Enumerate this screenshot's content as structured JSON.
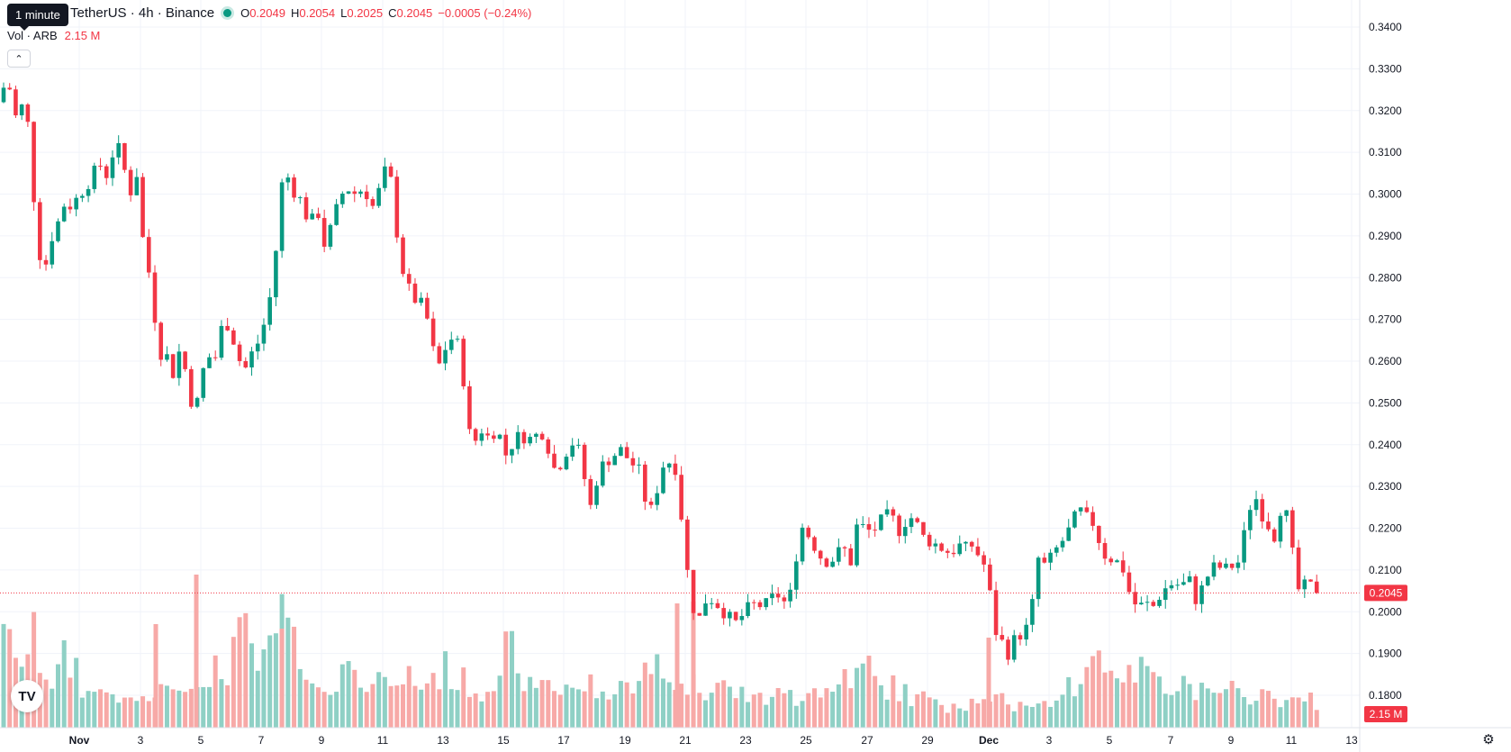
{
  "legend": {
    "symbol_title": "TetherUS · 4h · Binance",
    "open_label": "O",
    "open_value": "0.2049",
    "high_label": "H",
    "high_value": "0.2054",
    "low_label": "L",
    "low_value": "0.2025",
    "close_label": "C",
    "close_value": "0.2045",
    "change": "−0.0005 (−0.24%)",
    "volume_label": "Vol · ARB",
    "volume_value": "2.15 M"
  },
  "tooltip": "1 minute",
  "collapse_icon": "chevron-up-icon",
  "logo_icon": "tradingview-logo-icon",
  "logo_text": "TV",
  "settings_icon": "gear-icon",
  "colors": {
    "up": "#089981",
    "down": "#f23645",
    "up_volume": "#8fd0c5",
    "down_volume": "#f7a9a7",
    "grid": "#f0f3fa",
    "text": "#131722"
  },
  "chart_data": [
    {
      "type": "candlestick",
      "y_axis": {
        "ticks": [
          "0.3400",
          "0.3300",
          "0.3200",
          "0.3100",
          "0.3000",
          "0.2900",
          "0.2800",
          "0.2700",
          "0.2600",
          "0.2500",
          "0.2400",
          "0.2300",
          "0.2200",
          "0.2100",
          "0.2000",
          "0.1900",
          "0.1800"
        ],
        "range": [
          0.1735,
          0.3435
        ]
      },
      "x_axis": {
        "ticks": [
          "Nov",
          "3",
          "5",
          "7",
          "9",
          "11",
          "13",
          "15",
          "17",
          "19",
          "21",
          "23",
          "25",
          "27",
          "29",
          "Dec",
          "3",
          "5",
          "7",
          "9",
          "11",
          "13"
        ]
      },
      "last_price": "0.2045",
      "last_volume_label": "2.15 M",
      "path": [
        [
          0,
          0.322
        ],
        [
          8,
          0.329
        ],
        [
          16,
          0.318
        ],
        [
          24,
          0.321
        ],
        [
          32,
          0.316
        ],
        [
          40,
          0.292
        ],
        [
          48,
          0.28
        ],
        [
          56,
          0.289
        ],
        [
          64,
          0.293
        ],
        [
          72,
          0.298
        ],
        [
          80,
          0.297
        ],
        [
          88,
          0.3
        ],
        [
          96,
          0.302
        ],
        [
          104,
          0.305
        ],
        [
          112,
          0.307
        ],
        [
          120,
          0.304
        ],
        [
          128,
          0.313
        ],
        [
          136,
          0.308
        ],
        [
          144,
          0.3
        ],
        [
          152,
          0.305
        ],
        [
          160,
          0.286
        ],
        [
          168,
          0.279
        ],
        [
          176,
          0.262
        ],
        [
          184,
          0.262
        ],
        [
          192,
          0.257
        ],
        [
          200,
          0.263
        ],
        [
          208,
          0.256
        ],
        [
          216,
          0.246
        ],
        [
          224,
          0.257
        ],
        [
          232,
          0.261
        ],
        [
          240,
          0.261
        ],
        [
          248,
          0.27
        ],
        [
          256,
          0.268
        ],
        [
          264,
          0.261
        ],
        [
          272,
          0.258
        ],
        [
          280,
          0.262
        ],
        [
          288,
          0.265
        ],
        [
          296,
          0.271
        ],
        [
          304,
          0.28
        ],
        [
          312,
          0.302
        ],
        [
          320,
          0.304
        ],
        [
          328,
          0.3
        ],
        [
          336,
          0.298
        ],
        [
          344,
          0.292
        ],
        [
          352,
          0.297
        ],
        [
          360,
          0.288
        ],
        [
          368,
          0.292
        ],
        [
          376,
          0.298
        ],
        [
          384,
          0.302
        ],
        [
          392,
          0.3
        ],
        [
          400,
          0.301
        ],
        [
          408,
          0.3
        ],
        [
          416,
          0.296
        ],
        [
          424,
          0.304
        ],
        [
          432,
          0.307
        ],
        [
          440,
          0.292
        ],
        [
          448,
          0.281
        ],
        [
          456,
          0.276
        ],
        [
          464,
          0.274
        ],
        [
          472,
          0.273
        ],
        [
          480,
          0.263
        ],
        [
          488,
          0.259
        ],
        [
          496,
          0.264
        ],
        [
          504,
          0.266
        ],
        [
          512,
          0.262
        ],
        [
          520,
          0.243
        ],
        [
          528,
          0.241
        ],
        [
          536,
          0.244
        ],
        [
          544,
          0.241
        ],
        [
          552,
          0.245
        ],
        [
          560,
          0.237
        ],
        [
          568,
          0.24
        ],
        [
          576,
          0.242
        ],
        [
          584,
          0.242
        ],
        [
          592,
          0.241
        ],
        [
          600,
          0.244
        ],
        [
          608,
          0.24
        ],
        [
          616,
          0.234
        ],
        [
          624,
          0.236
        ],
        [
          632,
          0.24
        ],
        [
          640,
          0.241
        ],
        [
          648,
          0.233
        ],
        [
          656,
          0.225
        ],
        [
          664,
          0.233
        ],
        [
          672,
          0.236
        ],
        [
          680,
          0.237
        ],
        [
          688,
          0.239
        ],
        [
          696,
          0.237
        ],
        [
          704,
          0.235
        ],
        [
          712,
          0.233
        ],
        [
          720,
          0.222
        ],
        [
          728,
          0.228
        ],
        [
          736,
          0.235
        ],
        [
          744,
          0.236
        ],
        [
          752,
          0.234
        ],
        [
          760,
          0.215
        ],
        [
          768,
          0.202
        ],
        [
          776,
          0.198
        ],
        [
          784,
          0.203
        ],
        [
          792,
          0.203
        ],
        [
          800,
          0.201
        ],
        [
          808,
          0.199
        ],
        [
          816,
          0.197
        ],
        [
          824,
          0.199
        ],
        [
          832,
          0.201
        ],
        [
          840,
          0.202
        ],
        [
          848,
          0.201
        ],
        [
          856,
          0.203
        ],
        [
          864,
          0.204
        ],
        [
          872,
          0.202
        ],
        [
          880,
          0.205
        ],
        [
          888,
          0.221
        ],
        [
          896,
          0.219
        ],
        [
          904,
          0.216
        ],
        [
          912,
          0.213
        ],
        [
          920,
          0.212
        ],
        [
          928,
          0.213
        ],
        [
          936,
          0.216
        ],
        [
          944,
          0.211
        ],
        [
          952,
          0.221
        ],
        [
          960,
          0.22
        ],
        [
          968,
          0.219
        ],
        [
          976,
          0.221
        ],
        [
          984,
          0.223
        ],
        [
          992,
          0.222
        ],
        [
          1000,
          0.219
        ],
        [
          1008,
          0.223
        ],
        [
          1016,
          0.222
        ],
        [
          1024,
          0.218
        ],
        [
          1032,
          0.217
        ],
        [
          1040,
          0.216
        ],
        [
          1048,
          0.215
        ],
        [
          1056,
          0.214
        ],
        [
          1064,
          0.216
        ],
        [
          1072,
          0.215
        ],
        [
          1080,
          0.216
        ],
        [
          1088,
          0.213
        ],
        [
          1096,
          0.21
        ],
        [
          1104,
          0.196
        ],
        [
          1112,
          0.193
        ],
        [
          1120,
          0.19
        ],
        [
          1128,
          0.194
        ],
        [
          1136,
          0.195
        ],
        [
          1144,
          0.197
        ],
        [
          1152,
          0.213
        ],
        [
          1160,
          0.211
        ],
        [
          1168,
          0.213
        ],
        [
          1176,
          0.216
        ],
        [
          1184,
          0.218
        ],
        [
          1192,
          0.222
        ],
        [
          1200,
          0.224
        ],
        [
          1208,
          0.222
        ],
        [
          1216,
          0.221
        ],
        [
          1224,
          0.214
        ],
        [
          1232,
          0.213
        ],
        [
          1240,
          0.212
        ],
        [
          1248,
          0.21
        ],
        [
          1256,
          0.203
        ],
        [
          1264,
          0.201
        ],
        [
          1272,
          0.202
        ],
        [
          1280,
          0.201
        ],
        [
          1288,
          0.204
        ],
        [
          1296,
          0.206
        ],
        [
          1304,
          0.207
        ],
        [
          1312,
          0.206
        ],
        [
          1320,
          0.208
        ],
        [
          1328,
          0.203
        ],
        [
          1336,
          0.206
        ],
        [
          1344,
          0.21
        ],
        [
          1352,
          0.211
        ],
        [
          1360,
          0.21
        ],
        [
          1368,
          0.211
        ],
        [
          1376,
          0.212
        ],
        [
          1384,
          0.221
        ],
        [
          1392,
          0.229
        ],
        [
          1400,
          0.224
        ],
        [
          1408,
          0.221
        ],
        [
          1416,
          0.218
        ],
        [
          1424,
          0.227
        ],
        [
          1432,
          0.22
        ],
        [
          1440,
          0.205
        ],
        [
          1448,
          0.206
        ],
        [
          1456,
          0.206
        ],
        [
          1464,
          0.205
        ]
      ],
      "volume_estimates": [
        132,
        92,
        68,
        78,
        82,
        104,
        72,
        60,
        50,
        62,
        80,
        64,
        72,
        42,
        38,
        40,
        44,
        48,
        30,
        26,
        36,
        30,
        42,
        32,
        28,
        30,
        38,
        44,
        40,
        56,
        50,
        40,
        48,
        60,
        56,
        40,
        66,
        58,
        60,
        96,
        102,
        106,
        86,
        66,
        72,
        82,
        88,
        102,
        130,
        110,
        90,
        78,
        70,
        52,
        40,
        42,
        38,
        48,
        70,
        66,
        80,
        58,
        52,
        56,
        58,
        46,
        54,
        38,
        44,
        58,
        62,
        42,
        46,
        52,
        60,
        52,
        70,
        54,
        48,
        54,
        44,
        42,
        34,
        50,
        54,
        64,
        90,
        86,
        50,
        52,
        46,
        48,
        40,
        58,
        52,
        44,
        40,
        50,
        44,
        38,
        46,
        50,
        38,
        36,
        40,
        38,
        52,
        44,
        48,
        60,
        66,
        52,
        78,
        60,
        56,
        58,
        48,
        44,
        46,
        50,
        46,
        40,
        48,
        50,
        48,
        42,
        36,
        40,
        34,
        40,
        32,
        28,
        40,
        38,
        34,
        40,
        32,
        30,
        36,
        46,
        44,
        40,
        42,
        38,
        48,
        64,
        54,
        58,
        66,
        72,
        52,
        44,
        40,
        48,
        36,
        42,
        30,
        32,
        38,
        30,
        28,
        34,
        30,
        22,
        28,
        26,
        24,
        30,
        32,
        28,
        26,
        30,
        34,
        28,
        22,
        26,
        30,
        24,
        30,
        26,
        24,
        36,
        40,
        30,
        48,
        46,
        54,
        74,
        80,
        86,
        60,
        72,
        64,
        60,
        56,
        62,
        66,
        74,
        52,
        62,
        50,
        44,
        48,
        54,
        46,
        40,
        38,
        42,
        36,
        34,
        40,
        38,
        44,
        36,
        30,
        34,
        38,
        40,
        34,
        32,
        30,
        36,
        28,
        32,
        28,
        32,
        26,
        22
      ],
      "ohlc_estimate_note": ""
    }
  ]
}
